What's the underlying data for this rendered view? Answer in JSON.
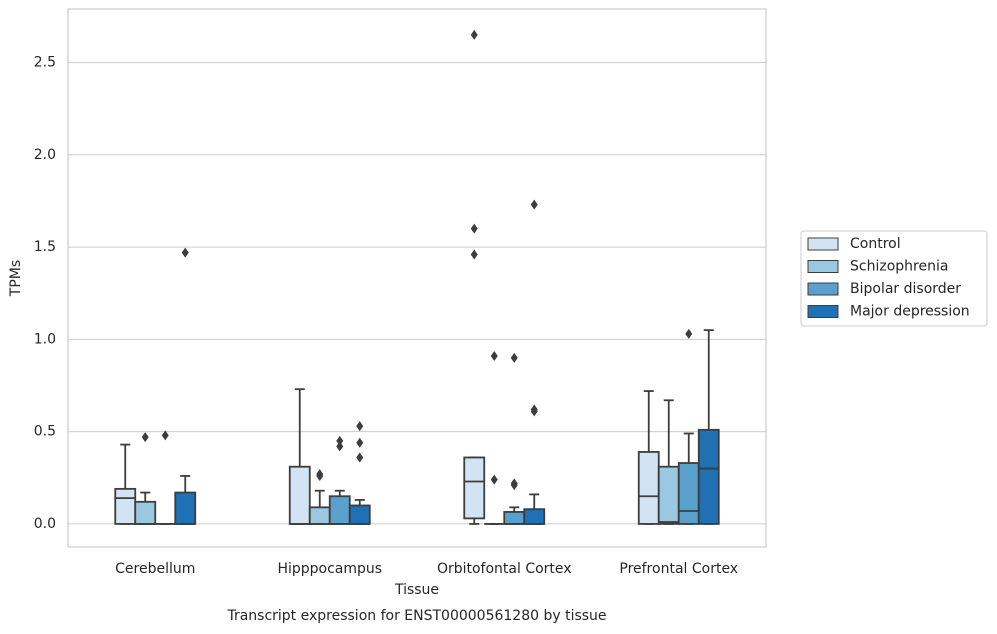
{
  "chart_data": {
    "type": "box",
    "title": "Transcript expression for ENST00000561280 by tissue",
    "x_label": "Tissue",
    "y_label": "TPMs",
    "categories": [
      "Cerebellum",
      "Hipppocampus",
      "Orbitofontal Cortex",
      "Prefrontal Cortex"
    ],
    "ylim": [
      -0.125,
      2.79
    ],
    "yticks": [
      {
        "value": 0,
        "label": "0.0"
      },
      0.5,
      {
        "value": 1,
        "label": "1.0"
      },
      1.5,
      {
        "value": 2,
        "label": "2.0"
      },
      2.5
    ],
    "grid": true,
    "legend": "right",
    "edge_color": "#3d3d3d",
    "series": [
      {
        "name": "Control",
        "color": "#d2e3f3",
        "values": [
          {
            "min": 0,
            "q1": 0,
            "median": 0.14,
            "q3": 0.19,
            "max": 0.43,
            "outliers": []
          },
          {
            "min": 0,
            "q1": 0,
            "median": 0,
            "q3": 0.31,
            "max": 0.73,
            "outliers": []
          },
          {
            "min": 0,
            "q1": 0.03,
            "median": 0.23,
            "q3": 0.36,
            "max": 0.36,
            "outliers": [
              2.65,
              1.6,
              1.46
            ]
          },
          {
            "min": 0,
            "q1": 0,
            "median": 0.15,
            "q3": 0.39,
            "max": 0.72,
            "outliers": []
          }
        ]
      },
      {
        "name": "Schizophrenia",
        "color": "#9ac8e0",
        "values": [
          {
            "min": 0,
            "q1": 0,
            "median": 0,
            "q3": 0.12,
            "max": 0.17,
            "outliers": [
              0.47
            ]
          },
          {
            "min": 0,
            "q1": 0,
            "median": 0,
            "q3": 0.09,
            "max": 0.18,
            "outliers": [
              0.27,
              0.26
            ]
          },
          {
            "min": 0,
            "q1": 0,
            "median": 0,
            "q3": 0,
            "max": 0,
            "outliers": [
              0.91,
              0.24
            ]
          },
          {
            "min": 0,
            "q1": 0,
            "median": 0.01,
            "q3": 0.31,
            "max": 0.67,
            "outliers": []
          }
        ]
      },
      {
        "name": "Bipolar disorder",
        "color": "#5aa0cd",
        "values": [
          {
            "min": 0,
            "q1": 0,
            "median": 0,
            "q3": 0,
            "max": 0,
            "outliers": [
              0.48
            ]
          },
          {
            "min": 0,
            "q1": 0,
            "median": 0,
            "q3": 0.15,
            "max": 0.18,
            "outliers": [
              0.45,
              0.42
            ]
          },
          {
            "min": 0,
            "q1": 0,
            "median": 0,
            "q3": 0.065,
            "max": 0.09,
            "outliers": [
              0.9,
              0.22,
              0.21
            ]
          },
          {
            "min": 0,
            "q1": 0,
            "median": 0.07,
            "q3": 0.33,
            "max": 0.49,
            "outliers": [
              1.03
            ]
          }
        ]
      },
      {
        "name": "Major depression",
        "color": "#2070b4",
        "values": [
          {
            "min": 0,
            "q1": 0,
            "median": 0,
            "q3": 0.17,
            "max": 0.26,
            "outliers": [
              1.47
            ]
          },
          {
            "min": 0,
            "q1": 0,
            "median": 0,
            "q3": 0.1,
            "max": 0.13,
            "outliers": [
              0.53,
              0.44,
              0.36
            ]
          },
          {
            "min": 0,
            "q1": 0,
            "median": 0,
            "q3": 0.08,
            "max": 0.16,
            "outliers": [
              1.73,
              0.62,
              0.61
            ]
          },
          {
            "min": 0,
            "q1": 0,
            "median": 0.3,
            "q3": 0.51,
            "max": 1.05,
            "outliers": []
          }
        ]
      }
    ]
  }
}
